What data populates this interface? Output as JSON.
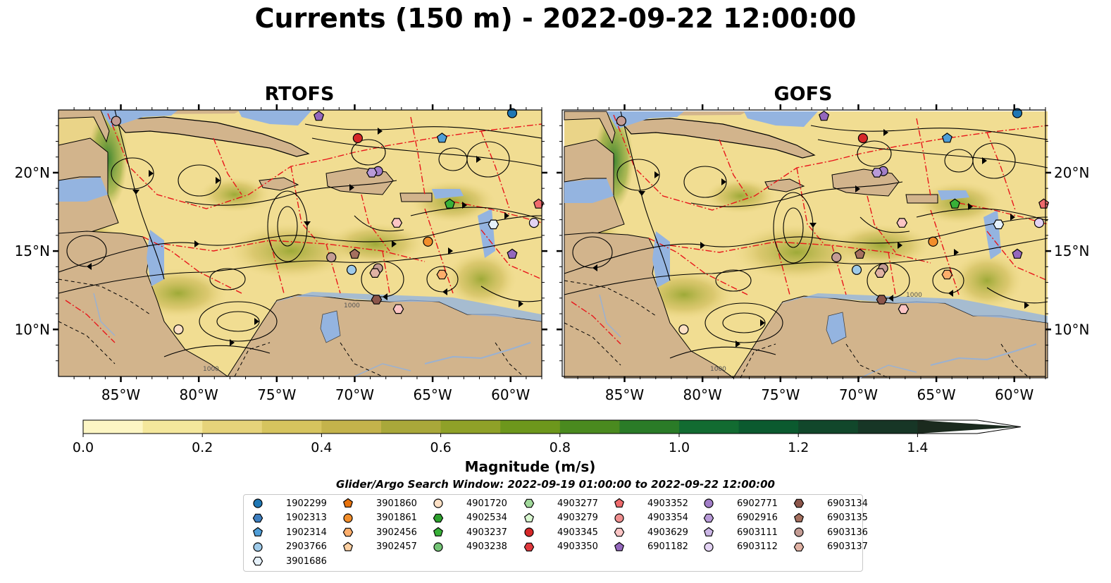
{
  "title": "Currents (150 m) - 2022-09-22 12:00:00",
  "panels": [
    {
      "title": "RTOFS"
    },
    {
      "title": "GOFS"
    }
  ],
  "axes": {
    "lon_ticks": [
      "85°W",
      "80°W",
      "75°W",
      "70°W",
      "65°W",
      "60°W"
    ],
    "lat_ticks": [
      "20°N",
      "15°N",
      "10°N"
    ],
    "lon_range": [
      -89,
      -58
    ],
    "lat_range": [
      7,
      24
    ]
  },
  "colorbar": {
    "label": "Magnitude (m/s)",
    "ticks": [
      "0.0",
      "0.2",
      "0.4",
      "0.6",
      "0.8",
      "1.0",
      "1.2",
      "1.4"
    ],
    "vmin": 0.0,
    "vmax": 1.5,
    "extend": "max",
    "colors": [
      "#fdf6c4",
      "#f4e79c",
      "#e6d37a",
      "#d6c45e",
      "#c4b34b",
      "#a9a83a",
      "#8fa128",
      "#6d971c",
      "#4a8a1f",
      "#2a7b27",
      "#126b31",
      "#0b5a2f",
      "#11472b",
      "#173626",
      "#1b2a1e"
    ]
  },
  "contour_label": "1000",
  "search_window": "Glider/Argo Search Window: 2022-09-19 01:00:00 to 2022-09-22 12:00:00",
  "legend": [
    {
      "id": "1902299",
      "marker": "circle",
      "color": "#1f77b4"
    },
    {
      "id": "1902313",
      "marker": "hexagon",
      "color": "#3d7ebf"
    },
    {
      "id": "1902314",
      "marker": "pentagon",
      "color": "#4f9ed8"
    },
    {
      "id": "2903766",
      "marker": "circle",
      "color": "#9ecae9"
    },
    {
      "id": "3901686",
      "marker": "hexagon",
      "color": "#e6f1fb"
    },
    {
      "id": "3901860",
      "marker": "pentagon",
      "color": "#e8730c"
    },
    {
      "id": "3901861",
      "marker": "circle",
      "color": "#f28e2b"
    },
    {
      "id": "3902456",
      "marker": "hexagon",
      "color": "#fdae6b"
    },
    {
      "id": "3902457",
      "marker": "pentagon",
      "color": "#fdd0a2"
    },
    {
      "id": "4901720",
      "marker": "circle",
      "color": "#fde0c5"
    },
    {
      "id": "4902534",
      "marker": "hexagon",
      "color": "#2ca02c"
    },
    {
      "id": "4903237",
      "marker": "pentagon",
      "color": "#38b138"
    },
    {
      "id": "4903238",
      "marker": "circle",
      "color": "#74c476"
    },
    {
      "id": "4903277",
      "marker": "hexagon",
      "color": "#a1d99b"
    },
    {
      "id": "4903279",
      "marker": "pentagon",
      "color": "#d9f7d0"
    },
    {
      "id": "4903345",
      "marker": "circle",
      "color": "#d62728"
    },
    {
      "id": "4903350",
      "marker": "hexagon",
      "color": "#e0393e"
    },
    {
      "id": "4903352",
      "marker": "pentagon",
      "color": "#ef6a6c"
    },
    {
      "id": "4903354",
      "marker": "circle",
      "color": "#f08f8f"
    },
    {
      "id": "4903629",
      "marker": "hexagon",
      "color": "#fcc5c5"
    },
    {
      "id": "6901182",
      "marker": "pentagon",
      "color": "#9467bd"
    },
    {
      "id": "6902771",
      "marker": "circle",
      "color": "#a27ec8"
    },
    {
      "id": "6902916",
      "marker": "hexagon",
      "color": "#b89ad8"
    },
    {
      "id": "6903111",
      "marker": "pentagon",
      "color": "#cbb6e6"
    },
    {
      "id": "6903112",
      "marker": "circle",
      "color": "#e3d3f3"
    },
    {
      "id": "6903134",
      "marker": "hexagon",
      "color": "#8c564b"
    },
    {
      "id": "6903135",
      "marker": "pentagon",
      "color": "#a5705f"
    },
    {
      "id": "6903136",
      "marker": "circle",
      "color": "#c49c94"
    },
    {
      "id": "6903137",
      "marker": "hexagon",
      "color": "#e0b2a4"
    }
  ],
  "floats": [
    {
      "id": "6903136",
      "lon": -85.3,
      "lat": 23.3
    },
    {
      "id": "6901182",
      "lon": -72.3,
      "lat": 23.6
    },
    {
      "id": "1902299",
      "lon": -59.9,
      "lat": 23.8
    },
    {
      "id": "4903345",
      "lon": -69.8,
      "lat": 22.2
    },
    {
      "id": "1902314",
      "lon": -64.4,
      "lat": 22.2
    },
    {
      "id": "6902771",
      "lon": -68.5,
      "lat": 20.1
    },
    {
      "id": "6902916",
      "lon": -68.9,
      "lat": 20.0
    },
    {
      "id": "4903237",
      "lon": -63.9,
      "lat": 18.0
    },
    {
      "id": "4903352",
      "lon": -58.2,
      "lat": 18.0
    },
    {
      "id": "4903629",
      "lon": -67.3,
      "lat": 16.8
    },
    {
      "id": "3901686",
      "lon": -61.1,
      "lat": 16.7
    },
    {
      "id": "6903112",
      "lon": -58.5,
      "lat": 16.8
    },
    {
      "id": "3901861",
      "lon": -65.3,
      "lat": 15.6
    },
    {
      "id": "6901182",
      "lon": -59.9,
      "lat": 14.8
    },
    {
      "id": "6903136",
      "lon": -71.5,
      "lat": 14.6
    },
    {
      "id": "6903135",
      "lon": -70.0,
      "lat": 14.8
    },
    {
      "id": "2903766",
      "lon": -70.2,
      "lat": 13.8
    },
    {
      "id": "6903136",
      "lon": -68.5,
      "lat": 13.9
    },
    {
      "id": "6903137",
      "lon": -68.7,
      "lat": 13.6
    },
    {
      "id": "3902456",
      "lon": -64.4,
      "lat": 13.5
    },
    {
      "id": "6903134",
      "lon": -68.6,
      "lat": 11.9
    },
    {
      "id": "4903629",
      "lon": -67.2,
      "lat": 11.3
    },
    {
      "id": "4901720",
      "lon": -81.3,
      "lat": 10.0
    }
  ]
}
